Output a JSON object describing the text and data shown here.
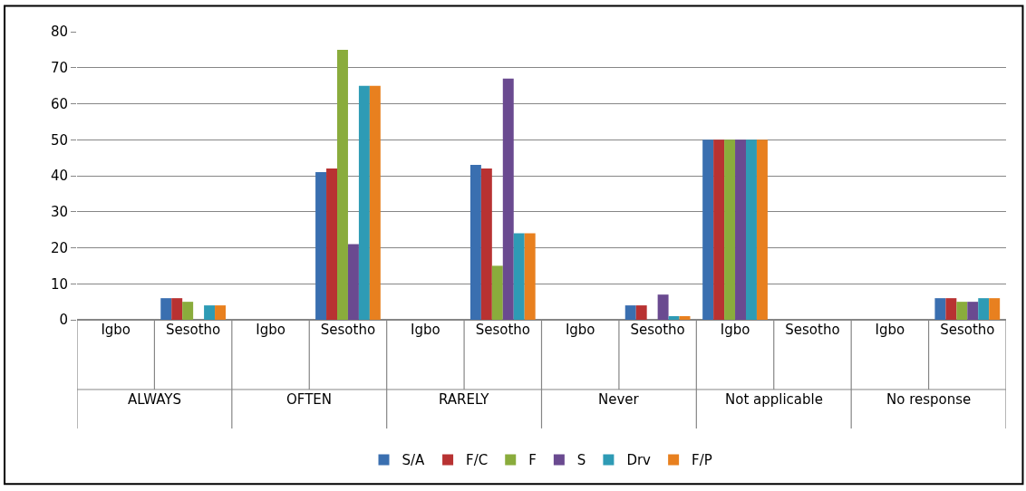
{
  "chart_data": {
    "type": "bar",
    "categories": [
      "Igbo",
      "Sesotho",
      "Igbo",
      "Sesotho",
      "Igbo",
      "Sesotho",
      "Igbo",
      "Sesotho",
      "Igbo",
      "Sesotho",
      "Igbo",
      "Sesotho"
    ],
    "annotations": [
      "ALWAYS",
      "OFTEN",
      "RARELY",
      "Never",
      "Not applicable",
      "No response"
    ],
    "series": [
      {
        "name": "S/A",
        "color": "#3a6fb0",
        "values": [
          0,
          6,
          0,
          41,
          0,
          43,
          0,
          4,
          50,
          0,
          0,
          6
        ]
      },
      {
        "name": "F/C",
        "color": "#b83232",
        "values": [
          0,
          6,
          0,
          42,
          0,
          42,
          0,
          4,
          50,
          0,
          0,
          6
        ]
      },
      {
        "name": "F",
        "color": "#8aac3c",
        "values": [
          0,
          5,
          0,
          75,
          0,
          15,
          0,
          0,
          50,
          0,
          0,
          5
        ]
      },
      {
        "name": "S",
        "color": "#6a4a90",
        "values": [
          0,
          0,
          0,
          21,
          0,
          67,
          0,
          7,
          50,
          0,
          0,
          5
        ]
      },
      {
        "name": "Drv",
        "color": "#2e9bb5",
        "values": [
          0,
          4,
          0,
          65,
          0,
          24,
          0,
          1,
          50,
          0,
          0,
          6
        ]
      },
      {
        "name": "F/P",
        "color": "#e8801f",
        "values": [
          0,
          4,
          0,
          65,
          0,
          24,
          0,
          1,
          50,
          0,
          0,
          6
        ]
      }
    ],
    "ylim": [
      0,
      80
    ],
    "yticks": [
      0,
      10,
      20,
      30,
      40,
      50,
      60,
      70,
      80
    ],
    "grid": "y",
    "legend": "bottom"
  }
}
